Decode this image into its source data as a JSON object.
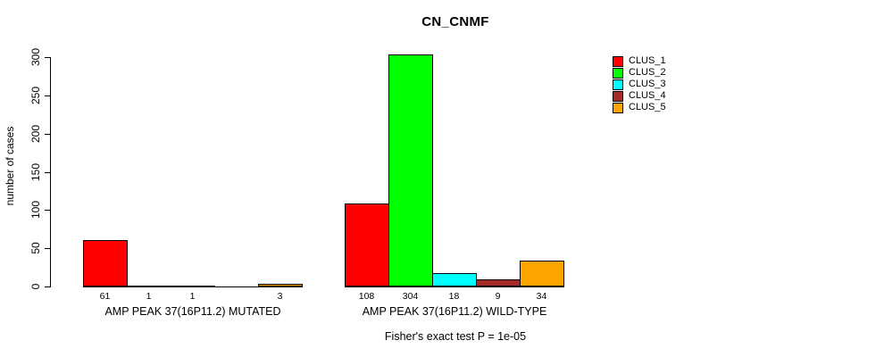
{
  "chart_data": {
    "type": "bar",
    "title": "CN_CNMF",
    "ylabel": "number of cases",
    "ylim": [
      0,
      300
    ],
    "yticks": [
      0,
      50,
      100,
      150,
      200,
      250,
      300
    ],
    "grid": false,
    "legend_position": "top-right",
    "series": [
      {
        "name": "CLUS_1",
        "color": "#FF0000"
      },
      {
        "name": "CLUS_2",
        "color": "#00FF00"
      },
      {
        "name": "CLUS_3",
        "color": "#00FFFF"
      },
      {
        "name": "CLUS_4",
        "color": "#A52A2A"
      },
      {
        "name": "CLUS_5",
        "color": "#FFA500"
      }
    ],
    "groups": [
      {
        "label": "AMP PEAK 37(16P11.2) MUTATED",
        "values": [
          61,
          1,
          1,
          0,
          3
        ],
        "bar_labels": [
          "61",
          "1",
          "1",
          "",
          "3"
        ]
      },
      {
        "label": "AMP PEAK 37(16P11.2) WILD-TYPE",
        "values": [
          108,
          304,
          18,
          9,
          34
        ],
        "bar_labels": [
          "108",
          "304",
          "18",
          "9",
          "34"
        ]
      }
    ],
    "annotation": "Fisher's exact test P = 1e-05"
  }
}
